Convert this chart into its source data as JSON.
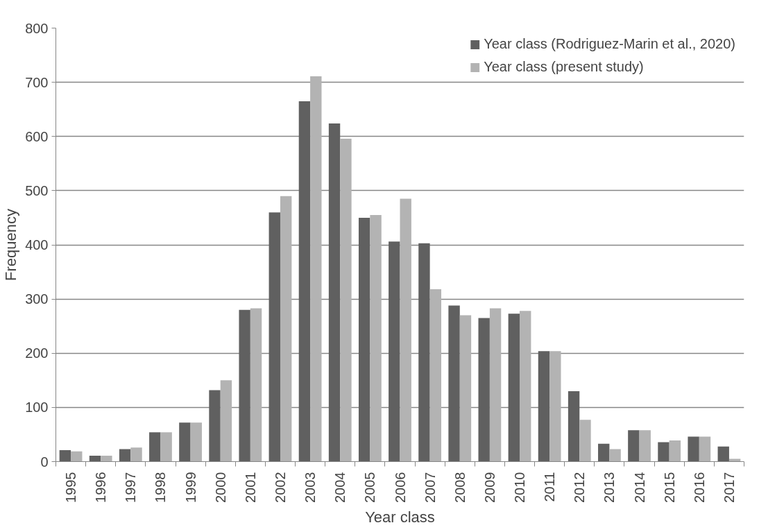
{
  "chart_data": {
    "type": "bar",
    "xlabel": "Year class",
    "ylabel": "Frequency",
    "categories": [
      "1995",
      "1996",
      "1997",
      "1998",
      "1999",
      "2000",
      "2001",
      "2002",
      "2003",
      "2004",
      "2005",
      "2006",
      "2007",
      "2008",
      "2009",
      "2010",
      "2011",
      "2012",
      "2013",
      "2014",
      "2015",
      "2016",
      "2017"
    ],
    "series": [
      {
        "name": "Year class (Rodriguez-Marin et al., 2020)",
        "color": "#606060",
        "values": [
          21,
          11,
          23,
          54,
          72,
          132,
          280,
          460,
          665,
          624,
          450,
          406,
          403,
          288,
          265,
          273,
          204,
          130,
          33,
          58,
          36,
          46,
          28
        ]
      },
      {
        "name": "Year class (present study)",
        "color": "#b3b3b3",
        "values": [
          19,
          11,
          26,
          54,
          72,
          150,
          283,
          490,
          711,
          596,
          455,
          485,
          318,
          270,
          283,
          278,
          204,
          77,
          23,
          58,
          39,
          46,
          5
        ]
      }
    ],
    "ylim": [
      0,
      800
    ],
    "yticks": [
      0,
      100,
      200,
      300,
      400,
      500,
      600,
      700,
      800
    ],
    "grid": "y",
    "legend": "top right"
  }
}
